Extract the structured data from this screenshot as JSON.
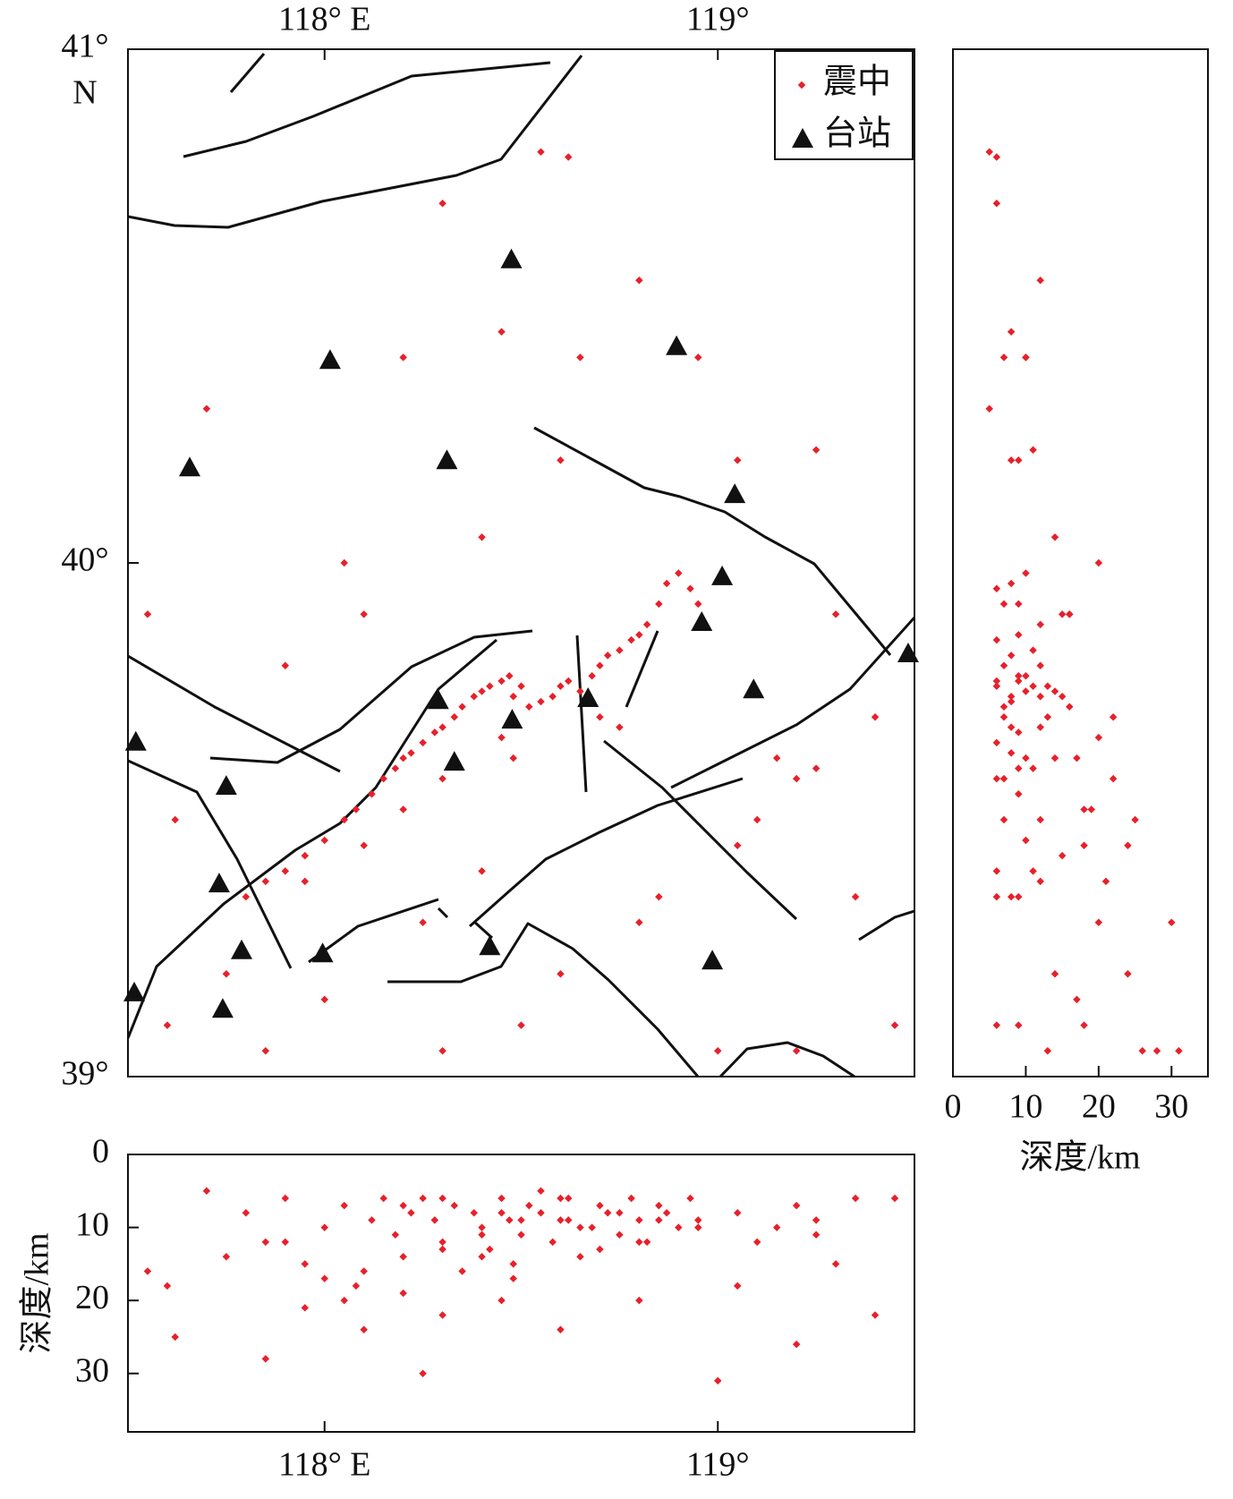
{
  "chart_data": {
    "type": "map",
    "map": {
      "xlim": [
        117.5,
        119.5
      ],
      "ylim": [
        39,
        41
      ],
      "xticks": [
        {
          "value": 118,
          "label": "118° E"
        },
        {
          "value": 119,
          "label": "119°"
        }
      ],
      "yticks": [
        {
          "value": 41,
          "label": "41°"
        },
        {
          "value": 40,
          "label": "40°"
        },
        {
          "value": 39,
          "label": "39°"
        }
      ],
      "lat_unit": "N"
    },
    "depth_lat": {
      "xlim": [
        0,
        35
      ],
      "xticks": [
        0,
        10,
        20,
        30
      ],
      "xlabel": "深度/km",
      "ylim": [
        39,
        41
      ]
    },
    "lon_depth": {
      "xlim": [
        117.5,
        119.5
      ],
      "ylim": [
        0,
        38
      ],
      "yticks": [
        0,
        10,
        20,
        30
      ],
      "ylabel": "深度/km",
      "xticks": [
        {
          "value": 118,
          "label": "118° E"
        },
        {
          "value": 119,
          "label": "119°"
        }
      ]
    },
    "epicenters": {
      "name": "震中",
      "color": "#e8202a",
      "points": [
        [
          117.8,
          39.35,
          8
        ],
        [
          117.85,
          39.38,
          12
        ],
        [
          117.9,
          39.4,
          6
        ],
        [
          117.95,
          39.43,
          15
        ],
        [
          118.0,
          39.46,
          10
        ],
        [
          118.05,
          39.5,
          7
        ],
        [
          118.08,
          39.52,
          18
        ],
        [
          118.12,
          39.55,
          9
        ],
        [
          118.15,
          39.58,
          6
        ],
        [
          118.18,
          39.6,
          11
        ],
        [
          118.2,
          39.62,
          14
        ],
        [
          118.22,
          39.63,
          8
        ],
        [
          118.25,
          39.65,
          6
        ],
        [
          118.28,
          39.67,
          9
        ],
        [
          118.3,
          39.68,
          12
        ],
        [
          118.33,
          39.7,
          7
        ],
        [
          118.35,
          39.72,
          16
        ],
        [
          118.38,
          39.74,
          8
        ],
        [
          118.4,
          39.75,
          10
        ],
        [
          118.42,
          39.76,
          13
        ],
        [
          118.45,
          39.77,
          6
        ],
        [
          118.47,
          39.78,
          9
        ],
        [
          118.48,
          39.74,
          15
        ],
        [
          118.5,
          39.76,
          11
        ],
        [
          118.52,
          39.72,
          7
        ],
        [
          118.55,
          39.73,
          8
        ],
        [
          118.58,
          39.74,
          12
        ],
        [
          118.6,
          39.76,
          6
        ],
        [
          118.62,
          39.77,
          9
        ],
        [
          118.65,
          39.75,
          14
        ],
        [
          118.68,
          39.78,
          10
        ],
        [
          118.7,
          39.8,
          7
        ],
        [
          118.72,
          39.82,
          8
        ],
        [
          118.75,
          39.83,
          11
        ],
        [
          118.78,
          39.85,
          6
        ],
        [
          118.8,
          39.86,
          9
        ],
        [
          118.82,
          39.88,
          12
        ],
        [
          118.85,
          39.92,
          7
        ],
        [
          118.87,
          39.96,
          8
        ],
        [
          118.9,
          39.98,
          10
        ],
        [
          118.93,
          39.95,
          6
        ],
        [
          118.95,
          39.92,
          9
        ],
        [
          118.7,
          39.7,
          13
        ],
        [
          118.75,
          39.68,
          8
        ],
        [
          118.45,
          39.66,
          20
        ],
        [
          118.48,
          39.62,
          17
        ],
        [
          118.3,
          39.58,
          22
        ],
        [
          118.2,
          39.52,
          19
        ],
        [
          118.1,
          39.45,
          24
        ],
        [
          117.95,
          39.38,
          21
        ],
        [
          117.55,
          39.9,
          16
        ],
        [
          117.7,
          40.3,
          5
        ],
        [
          117.62,
          39.5,
          25
        ],
        [
          117.75,
          39.2,
          14
        ],
        [
          117.6,
          39.1,
          18
        ],
        [
          118.05,
          40.0,
          20
        ],
        [
          118.2,
          40.4,
          7
        ],
        [
          118.3,
          40.7,
          6
        ],
        [
          118.45,
          40.45,
          8
        ],
        [
          118.55,
          40.8,
          5
        ],
        [
          118.62,
          40.79,
          6
        ],
        [
          118.6,
          40.2,
          9
        ],
        [
          118.8,
          40.55,
          12
        ],
        [
          118.95,
          40.4,
          10
        ],
        [
          119.05,
          40.2,
          8
        ],
        [
          119.25,
          40.22,
          11
        ],
        [
          119.3,
          39.9,
          15
        ],
        [
          119.15,
          39.62,
          10
        ],
        [
          119.2,
          39.58,
          7
        ],
        [
          119.25,
          39.6,
          9
        ],
        [
          119.1,
          39.5,
          12
        ],
        [
          119.05,
          39.45,
          18
        ],
        [
          119.35,
          39.35,
          6
        ],
        [
          118.8,
          39.3,
          20
        ],
        [
          118.6,
          39.2,
          24
        ],
        [
          118.5,
          39.1,
          9
        ],
        [
          118.3,
          39.05,
          13
        ],
        [
          117.85,
          39.05,
          28
        ],
        [
          118.0,
          39.15,
          17
        ],
        [
          119.4,
          39.7,
          22
        ],
        [
          119.45,
          39.1,
          6
        ],
        [
          118.65,
          40.4,
          10
        ],
        [
          117.9,
          39.8,
          12
        ],
        [
          118.1,
          39.9,
          16
        ],
        [
          118.4,
          40.05,
          14
        ],
        [
          119.0,
          39.05,
          31
        ],
        [
          118.4,
          39.4,
          11
        ],
        [
          118.85,
          39.35,
          9
        ],
        [
          118.25,
          39.3,
          30
        ],
        [
          119.2,
          39.05,
          26
        ]
      ]
    },
    "stations": {
      "name": "台站",
      "color": "#111111",
      "points": [
        [
          118.475,
          40.591
        ],
        [
          118.014,
          40.395
        ],
        [
          118.895,
          40.422
        ],
        [
          117.657,
          40.186
        ],
        [
          118.311,
          40.2
        ],
        [
          119.043,
          40.134
        ],
        [
          119.011,
          39.974
        ],
        [
          118.959,
          39.885
        ],
        [
          119.484,
          39.824
        ],
        [
          119.091,
          39.754
        ],
        [
          118.289,
          39.733
        ],
        [
          118.67,
          39.737
        ],
        [
          118.477,
          39.695
        ],
        [
          117.52,
          39.652
        ],
        [
          118.33,
          39.613
        ],
        [
          117.75,
          39.566
        ],
        [
          117.732,
          39.376
        ],
        [
          117.789,
          39.246
        ],
        [
          117.995,
          39.24
        ],
        [
          118.42,
          39.254
        ],
        [
          118.986,
          39.226
        ],
        [
          117.516,
          39.164
        ],
        [
          117.741,
          39.132
        ]
      ]
    }
  }
}
